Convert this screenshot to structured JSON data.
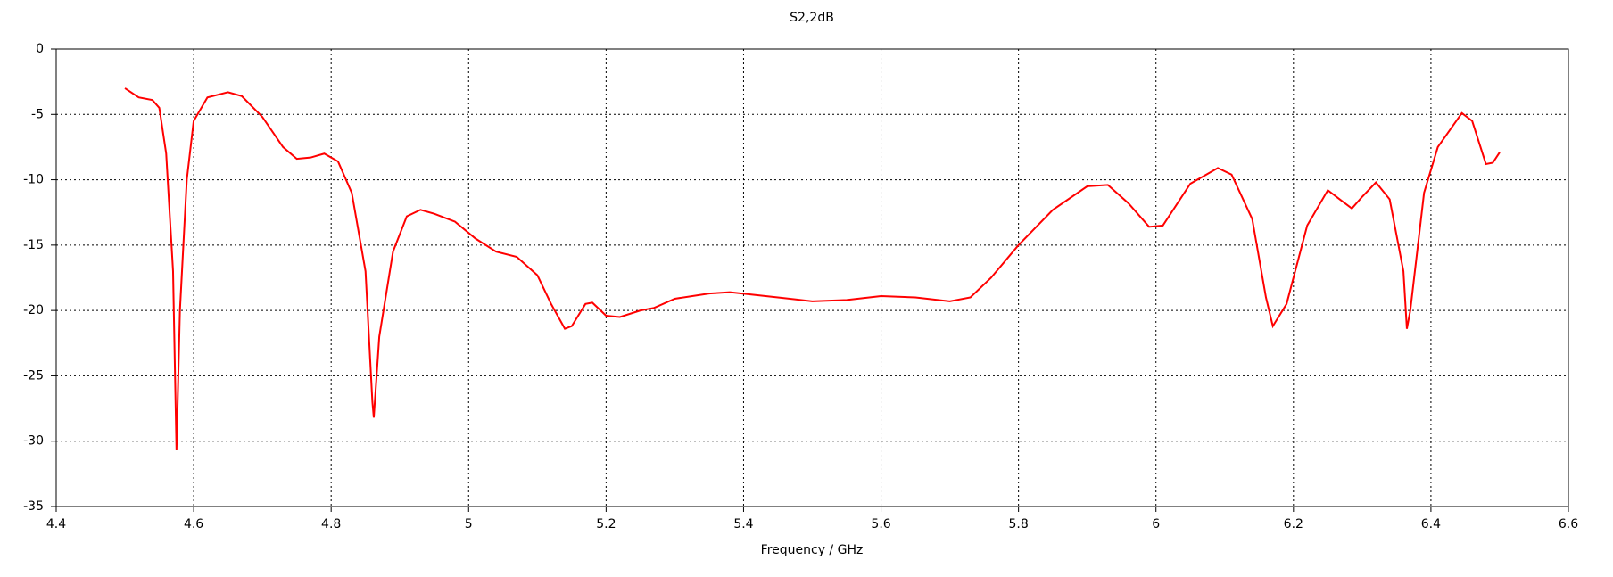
{
  "chart_data": {
    "type": "line",
    "title": "S2,2dB",
    "x_label": "Frequency / GHz",
    "x": [
      4.5,
      4.52,
      4.54,
      4.55,
      4.56,
      4.57,
      4.575,
      4.58,
      4.59,
      4.6,
      4.62,
      4.65,
      4.67,
      4.7,
      4.73,
      4.75,
      4.77,
      4.79,
      4.81,
      4.83,
      4.85,
      4.86,
      4.862,
      4.87,
      4.89,
      4.91,
      4.93,
      4.95,
      4.98,
      5.01,
      5.04,
      5.07,
      5.1,
      5.12,
      5.14,
      5.15,
      5.17,
      5.18,
      5.2,
      5.22,
      5.25,
      5.27,
      5.3,
      5.35,
      5.38,
      5.45,
      5.5,
      5.55,
      5.6,
      5.65,
      5.7,
      5.73,
      5.76,
      5.8,
      5.85,
      5.9,
      5.93,
      5.96,
      5.99,
      6.01,
      6.05,
      6.09,
      6.11,
      6.14,
      6.16,
      6.17,
      6.19,
      6.22,
      6.25,
      6.27,
      6.285,
      6.3,
      6.32,
      6.34,
      6.36,
      6.365,
      6.37,
      6.39,
      6.41,
      6.445,
      6.46,
      6.48,
      6.49,
      6.5
    ],
    "series": [
      {
        "name": "S2,2",
        "color": "#ff0000",
        "values": [
          -3.0,
          -3.7,
          -3.9,
          -4.5,
          -8,
          -17,
          -30.7,
          -20,
          -10,
          -5.5,
          -3.7,
          -3.3,
          -3.6,
          -5.2,
          -7.5,
          -8.4,
          -8.3,
          -8.0,
          -8.6,
          -11,
          -17,
          -27,
          -28.2,
          -22,
          -15.5,
          -12.8,
          -12.3,
          -12.6,
          -13.2,
          -14.5,
          -15.5,
          -15.9,
          -17.3,
          -19.5,
          -21.4,
          -21.2,
          -19.5,
          -19.4,
          -20.4,
          -20.5,
          -20.0,
          -19.8,
          -19.1,
          -18.7,
          -18.6,
          -19.0,
          -19.3,
          -19.2,
          -18.9,
          -19.0,
          -19.3,
          -19.0,
          -17.5,
          -15.0,
          -12.3,
          -10.5,
          -10.4,
          -11.8,
          -13.6,
          -13.5,
          -10.3,
          -9.1,
          -9.6,
          -13,
          -19,
          -21.2,
          -19.5,
          -13.5,
          -10.8,
          -11.6,
          -12.2,
          -11.3,
          -10.2,
          -11.5,
          -17,
          -21.4,
          -20,
          -11,
          -7.5,
          -4.9,
          -5.5,
          -8.8,
          -8.7,
          -7.9
        ]
      }
    ],
    "xlim": [
      4.4,
      6.6
    ],
    "xticks": [
      4.4,
      4.6,
      4.8,
      5,
      5.2,
      5.4,
      5.6,
      5.8,
      6,
      6.2,
      6.4,
      6.6
    ],
    "ylim": [
      -35,
      0
    ],
    "yticks": [
      0,
      -5,
      -10,
      -15,
      -20,
      -25,
      -30,
      -35
    ],
    "grid": true
  }
}
